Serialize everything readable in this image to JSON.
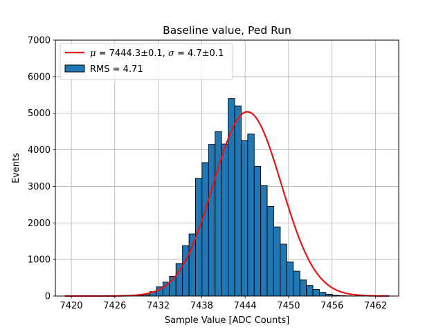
{
  "chart_data": {
    "type": "bar",
    "title": "Baseline value, Ped Run",
    "xlabel": "Sample Value [ADC Counts]",
    "ylabel": "Events",
    "xlim": [
      7417.8,
      7465.2
    ],
    "ylim": [
      0,
      7000
    ],
    "xticks": [
      "7420",
      "7426",
      "7432",
      "7438",
      "7444",
      "7450",
      "7456",
      "7462"
    ],
    "yticks": [
      "0",
      "1000",
      "2000",
      "3000",
      "4000",
      "5000",
      "6000",
      "7000"
    ],
    "grid": true,
    "legend_position": "top-left",
    "bin_width": 0.9,
    "x": [
      7429.5,
      7430.4,
      7431.3,
      7432.2,
      7433.1,
      7434.0,
      7434.9,
      7435.8,
      7436.7,
      7437.6,
      7438.5,
      7439.4,
      7440.3,
      7441.2,
      7442.1,
      7443.0,
      7443.9,
      7444.8,
      7445.7,
      7446.6,
      7447.5,
      7448.4,
      7449.3,
      7450.2,
      7451.1,
      7452.0,
      7452.9,
      7453.8,
      7454.7,
      7455.6,
      7456.5,
      7457.4,
      7458.3
    ],
    "series": [
      {
        "name": "RMS = 4.71",
        "color": "#1f77b4",
        "values": [
          10,
          40,
          120,
          250,
          380,
          540,
          890,
          1380,
          1700,
          3220,
          3650,
          4150,
          4500,
          4160,
          5400,
          5200,
          4250,
          4430,
          3550,
          3020,
          2450,
          1890,
          1420,
          930,
          680,
          440,
          290,
          180,
          100,
          50,
          20,
          10,
          5
        ]
      },
      {
        "type": "line",
        "name_mu_symbol": "μ",
        "name_mu_value": " = 7444.3±0.1, ",
        "name_sigma_symbol": "σ",
        "name_sigma_value": " = 4.7±0.1",
        "color": "#ee1111",
        "mu": 7444.3,
        "sigma": 4.7,
        "amplitude": 5040,
        "x_range": [
          7419.1,
          7463.9
        ]
      }
    ]
  }
}
